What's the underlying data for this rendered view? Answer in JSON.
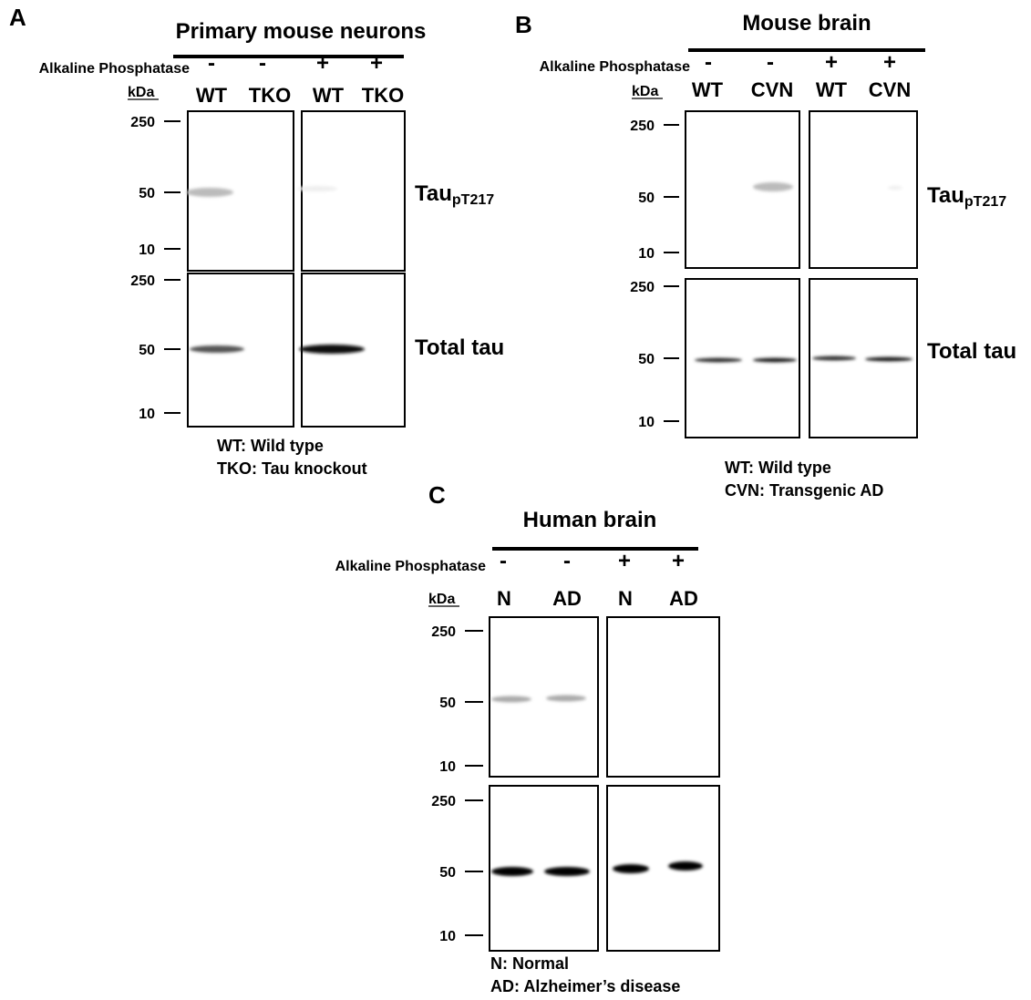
{
  "panels": [
    {
      "label": "A",
      "title": "Primary mouse neurons",
      "phosphatase_label": "Alkaline Phosphatase",
      "phosphatase": [
        "-",
        "-",
        "+",
        "+"
      ],
      "unit": "kDa",
      "lanes": [
        "WT",
        "TKO",
        "WT",
        "TKO"
      ],
      "blots": [
        {
          "markers": [
            250,
            50,
            10
          ],
          "label": {
            "main": "Tau",
            "sub": "pT217"
          }
        },
        {
          "markers": [
            250,
            50,
            10
          ],
          "label": {
            "main": "Total tau"
          }
        }
      ],
      "legend": [
        "WT: Wild type",
        "TKO: Tau knockout"
      ]
    },
    {
      "label": "B",
      "title": "Mouse brain",
      "phosphatase_label": "Alkaline Phosphatase",
      "phosphatase": [
        "-",
        "-",
        "+",
        "+"
      ],
      "unit": "kDa",
      "lanes": [
        "WT",
        "CVN",
        "WT",
        "CVN"
      ],
      "blots": [
        {
          "markers": [
            250,
            50,
            10
          ],
          "label": {
            "main": "Tau",
            "sub": "pT217"
          }
        },
        {
          "markers": [
            250,
            50,
            10
          ],
          "label": {
            "main": "Total tau"
          }
        }
      ],
      "legend": [
        "WT: Wild type",
        "CVN: Transgenic AD"
      ]
    },
    {
      "label": "C",
      "title": "Human brain",
      "phosphatase_label": "Alkaline Phosphatase",
      "phosphatase": [
        "-",
        "-",
        "+",
        "+"
      ],
      "unit": "kDa",
      "lanes": [
        "N",
        "AD",
        "N",
        "AD"
      ],
      "blots": [
        {
          "markers": [
            250,
            50,
            10
          ]
        },
        {
          "markers": [
            250,
            50,
            10
          ]
        }
      ],
      "legend": [
        "N: Normal",
        "AD: Alzheimer’s disease"
      ]
    }
  ]
}
